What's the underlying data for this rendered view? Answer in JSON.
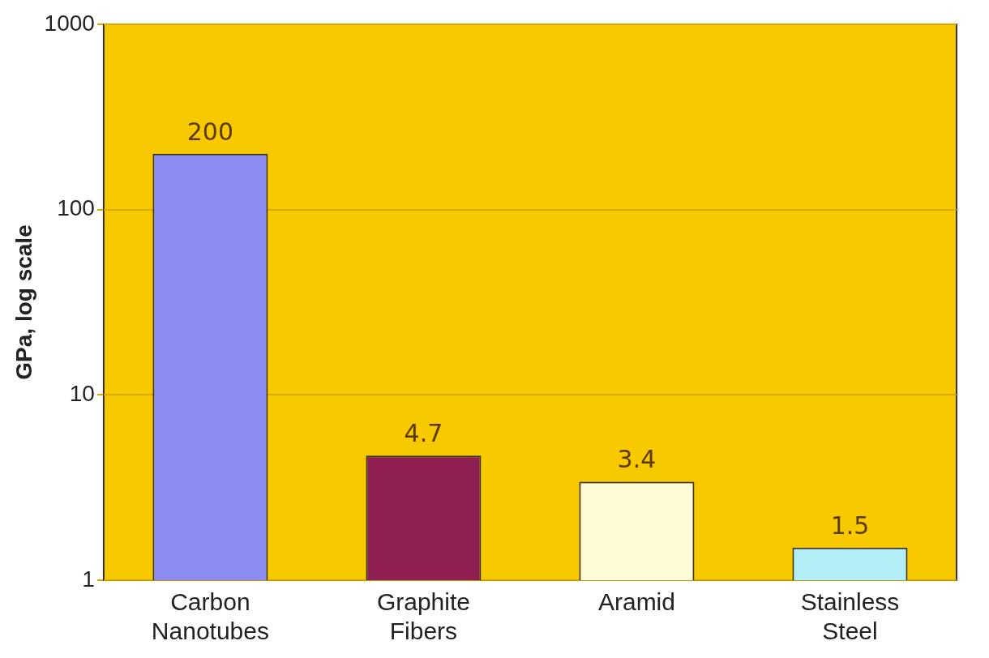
{
  "chart_data": {
    "type": "bar",
    "ylabel": "GPa, log scale",
    "categories": [
      "Carbon Nanotubes",
      "Graphite Fibers",
      "Aramid",
      "Stainless Steel"
    ],
    "values": [
      200,
      4.7,
      3.4,
      1.5
    ],
    "colors": [
      "#8c8cf2",
      "#8e1f50",
      "#fdfbd6",
      "#b4eef6"
    ],
    "log": "y",
    "ylim": [
      1,
      1000
    ],
    "yticks": [
      1,
      10,
      100,
      1000
    ],
    "grid": "y",
    "data_labels": true,
    "legend": false
  }
}
